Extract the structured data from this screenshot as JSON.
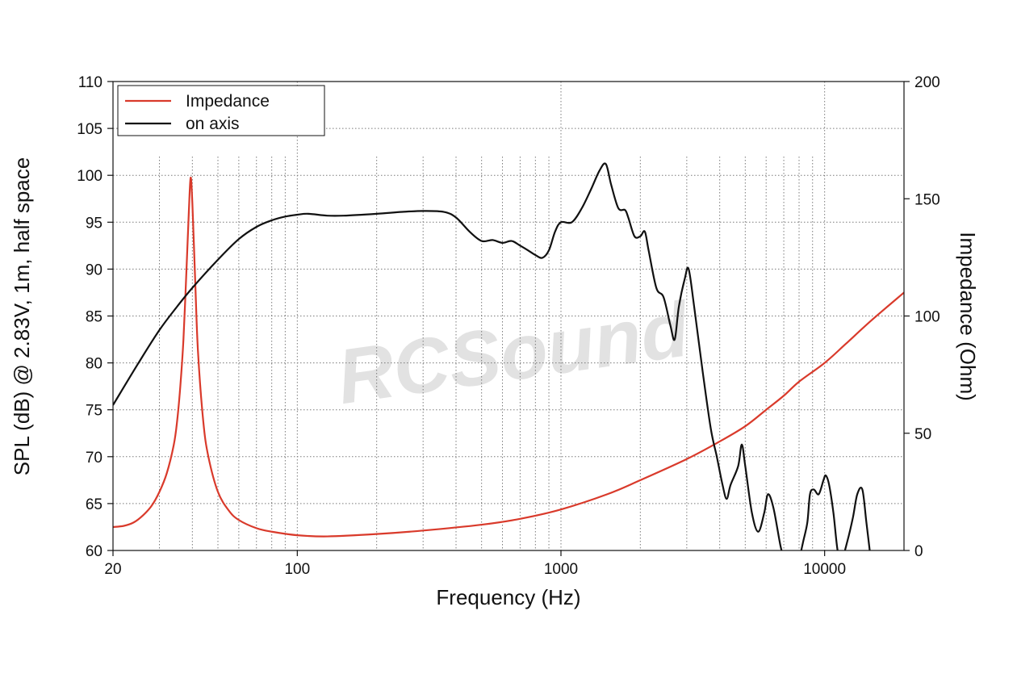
{
  "chart_data": {
    "type": "line",
    "watermark": "RCSound",
    "xlabel": "Frequency (Hz)",
    "ylabel": "SPL (dB) @ 2.83V, 1m, half space",
    "y2label": "Impedance (Ohm)",
    "xscale": "log",
    "xlim": [
      20,
      20000
    ],
    "ylim": [
      60,
      110
    ],
    "y2lim": [
      0,
      200
    ],
    "xticks": [
      {
        "value": 20,
        "label": "20"
      },
      {
        "value": 100,
        "label": "100"
      },
      {
        "value": 1000,
        "label": "1000"
      },
      {
        "value": 10000,
        "label": "10000"
      }
    ],
    "yticks": [
      "60",
      "65",
      "70",
      "75",
      "80",
      "85",
      "90",
      "95",
      "100",
      "105",
      "110"
    ],
    "y2ticks": [
      "0",
      "50",
      "100",
      "150",
      "200"
    ],
    "grid": true,
    "legend": {
      "position": "top-left",
      "entries": [
        {
          "label": "Impedance",
          "color": "#d93a2b"
        },
        {
          "label": "on axis",
          "color": "#111111"
        }
      ]
    },
    "series": [
      {
        "name": "Impedance",
        "axis": "right",
        "color": "#d93a2b",
        "points": [
          [
            20,
            10
          ],
          [
            22,
            10.5
          ],
          [
            24,
            12
          ],
          [
            26,
            15
          ],
          [
            28,
            19
          ],
          [
            30,
            25
          ],
          [
            32,
            33
          ],
          [
            34,
            45
          ],
          [
            35,
            55
          ],
          [
            36,
            70
          ],
          [
            37,
            90
          ],
          [
            38,
            120
          ],
          [
            38.8,
            145
          ],
          [
            39.4,
            159
          ],
          [
            40,
            148
          ],
          [
            41,
            115
          ],
          [
            42,
            85
          ],
          [
            44,
            55
          ],
          [
            46,
            40
          ],
          [
            50,
            25
          ],
          [
            55,
            17
          ],
          [
            60,
            13
          ],
          [
            70,
            9.5
          ],
          [
            80,
            8
          ],
          [
            100,
            6.5
          ],
          [
            130,
            6
          ],
          [
            200,
            7
          ],
          [
            300,
            8.5
          ],
          [
            500,
            11
          ],
          [
            700,
            13.5
          ],
          [
            1000,
            17.5
          ],
          [
            1500,
            24
          ],
          [
            2000,
            30
          ],
          [
            3000,
            39
          ],
          [
            4000,
            46.5
          ],
          [
            5000,
            53
          ],
          [
            6000,
            60
          ],
          [
            7000,
            66
          ],
          [
            8000,
            72
          ],
          [
            10000,
            80
          ],
          [
            12000,
            88
          ],
          [
            15000,
            98
          ],
          [
            20000,
            110
          ]
        ]
      },
      {
        "name": "on axis",
        "axis": "left",
        "color": "#111111",
        "points": [
          [
            20,
            75.5
          ],
          [
            25,
            80
          ],
          [
            30,
            83.5
          ],
          [
            35,
            86
          ],
          [
            40,
            88
          ],
          [
            50,
            91
          ],
          [
            60,
            93.2
          ],
          [
            70,
            94.5
          ],
          [
            80,
            95.2
          ],
          [
            90,
            95.6
          ],
          [
            100,
            95.8
          ],
          [
            110,
            95.9
          ],
          [
            130,
            95.7
          ],
          [
            150,
            95.7
          ],
          [
            200,
            95.9
          ],
          [
            250,
            96.1
          ],
          [
            300,
            96.2
          ],
          [
            360,
            96.1
          ],
          [
            400,
            95.5
          ],
          [
            450,
            94
          ],
          [
            500,
            93
          ],
          [
            550,
            93.1
          ],
          [
            600,
            92.8
          ],
          [
            650,
            93
          ],
          [
            700,
            92.5
          ],
          [
            750,
            92
          ],
          [
            800,
            91.5
          ],
          [
            850,
            91.2
          ],
          [
            900,
            92
          ],
          [
            950,
            94
          ],
          [
            1000,
            95
          ],
          [
            1100,
            95
          ],
          [
            1200,
            96.5
          ],
          [
            1300,
            98.5
          ],
          [
            1400,
            100.5
          ],
          [
            1480,
            101.2
          ],
          [
            1550,
            99
          ],
          [
            1650,
            96.5
          ],
          [
            1750,
            96.3
          ],
          [
            1800,
            95.5
          ],
          [
            1900,
            93.5
          ],
          [
            2000,
            93.5
          ],
          [
            2080,
            94
          ],
          [
            2150,
            92
          ],
          [
            2300,
            88
          ],
          [
            2450,
            87
          ],
          [
            2600,
            84
          ],
          [
            2700,
            82.5
          ],
          [
            2800,
            86
          ],
          [
            2950,
            89
          ],
          [
            3050,
            90
          ],
          [
            3200,
            86
          ],
          [
            3450,
            79
          ],
          [
            3700,
            73
          ],
          [
            3900,
            70
          ],
          [
            4100,
            67
          ],
          [
            4250,
            65.5
          ],
          [
            4400,
            67
          ],
          [
            4700,
            69
          ],
          [
            4850,
            71.3
          ],
          [
            5000,
            69
          ],
          [
            5300,
            64
          ],
          [
            5600,
            62
          ],
          [
            5900,
            64
          ],
          [
            6100,
            66
          ],
          [
            6400,
            64.5
          ],
          [
            6800,
            60.5
          ],
          [
            7050,
            59
          ],
          [
            7500,
            57
          ],
          [
            7800,
            58
          ],
          [
            8000,
            59
          ],
          [
            8300,
            61
          ],
          [
            8600,
            63
          ],
          [
            8800,
            66
          ],
          [
            9100,
            66.5
          ],
          [
            9500,
            66
          ],
          [
            9900,
            67.5
          ],
          [
            10100,
            68
          ],
          [
            10400,
            67
          ],
          [
            10800,
            64
          ],
          [
            11200,
            60
          ],
          [
            11600,
            59
          ],
          [
            12200,
            61
          ],
          [
            12800,
            63.5
          ],
          [
            13300,
            66
          ],
          [
            13900,
            66.5
          ],
          [
            14400,
            63
          ],
          [
            14900,
            59.5
          ]
        ]
      }
    ]
  }
}
